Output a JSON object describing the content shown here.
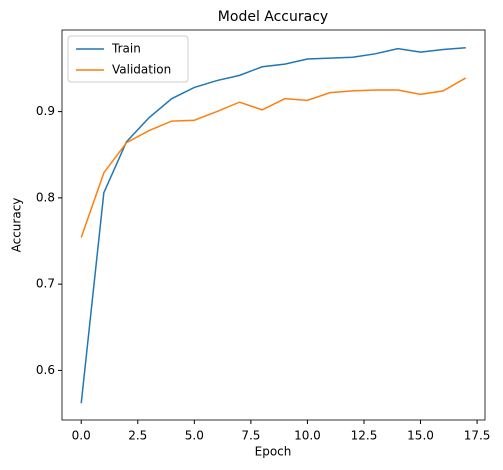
{
  "chart_data": {
    "type": "line",
    "title": "Model Accuracy",
    "x_label": "Epoch",
    "y_label": "Accuracy",
    "x": [
      0,
      1,
      2,
      3,
      4,
      5,
      6,
      7,
      8,
      9,
      10,
      11,
      12,
      13,
      14,
      15,
      16,
      17
    ],
    "series": [
      {
        "name": "Train",
        "color": "#1f77b4",
        "values": [
          0.562,
          0.806,
          0.865,
          0.893,
          0.915,
          0.928,
          0.936,
          0.942,
          0.952,
          0.955,
          0.961,
          0.962,
          0.963,
          0.967,
          0.973,
          0.969,
          0.972,
          0.974
        ]
      },
      {
        "name": "Validation",
        "color": "#ff7f0e",
        "values": [
          0.754,
          0.829,
          0.864,
          0.878,
          0.889,
          0.89,
          0.9,
          0.911,
          0.902,
          0.915,
          0.913,
          0.922,
          0.924,
          0.925,
          0.925,
          0.92,
          0.924,
          0.939
        ]
      }
    ],
    "xlim": [
      -0.85,
      17.85
    ],
    "xticks": [
      {
        "value": 0,
        "label": "0.0"
      },
      {
        "value": 2.5,
        "label": "2.5"
      },
      {
        "value": 5,
        "label": "5.0"
      },
      {
        "value": 7.5,
        "label": "7.5"
      },
      {
        "value": 10,
        "label": "10.0"
      },
      {
        "value": 12.5,
        "label": "12.5"
      },
      {
        "value": 15,
        "label": "15.0"
      },
      {
        "value": 17.5,
        "label": "17.5"
      }
    ],
    "ylim": [
      0.5425,
      0.9946
    ],
    "yticks": [
      0.6,
      0.7,
      0.8,
      0.9
    ],
    "grid": false,
    "legend": "upper-left"
  }
}
